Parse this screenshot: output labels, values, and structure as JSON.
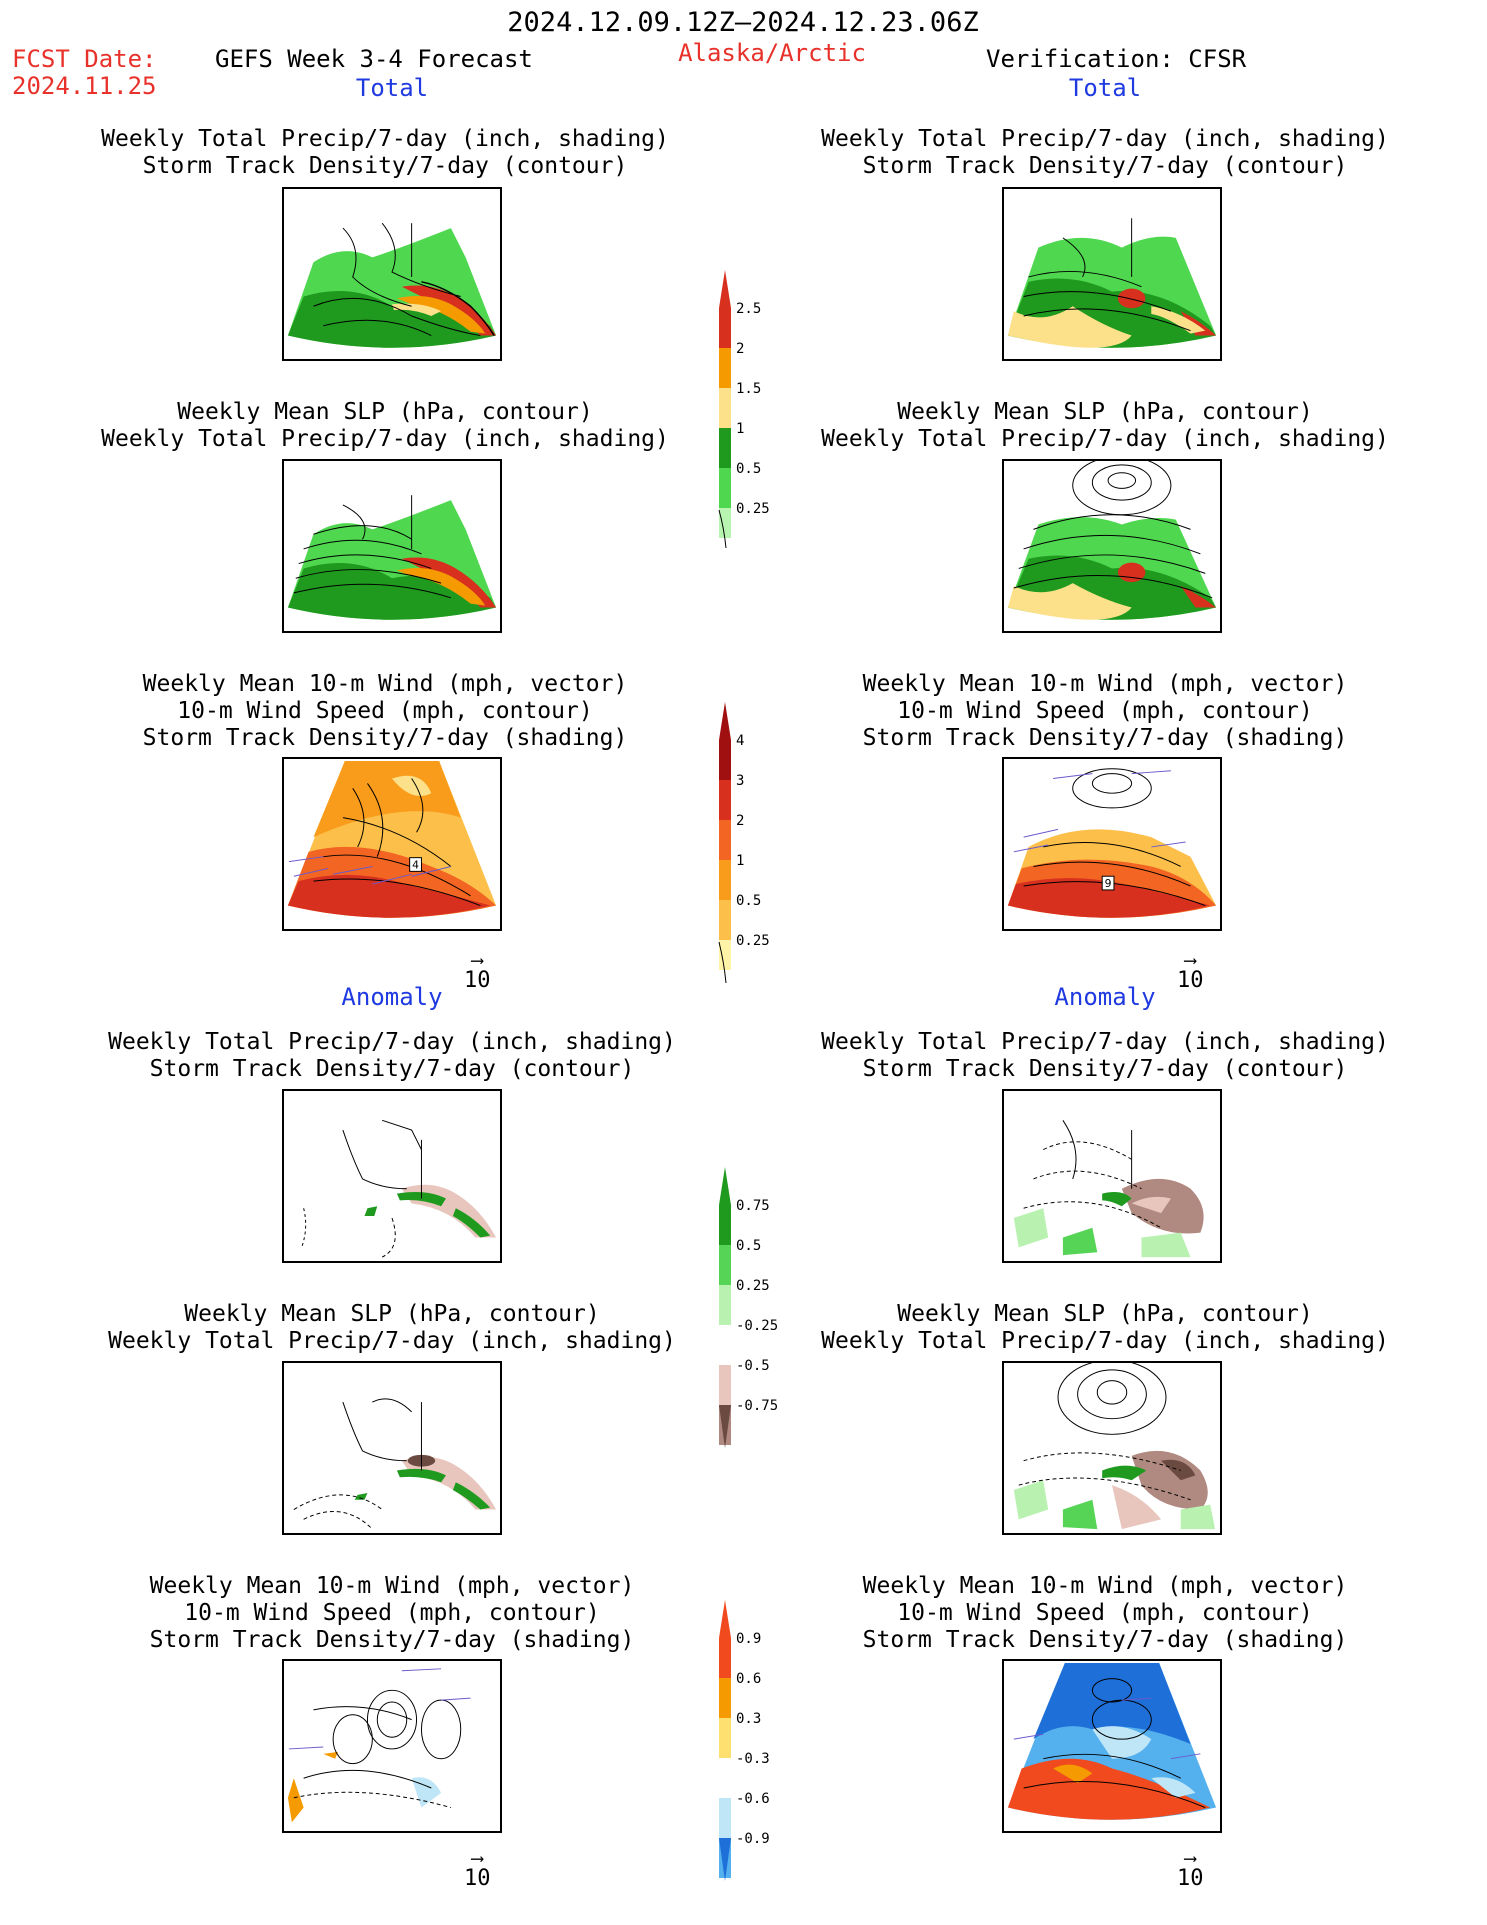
{
  "header": {
    "period": "2024.12.09.12Z–2024.12.23.06Z",
    "fcst_label": "FCST Date:",
    "fcst_date": "2024.11.25",
    "forecast_name": "GEFS Week 3-4 Forecast",
    "region": "Alaska/Arctic",
    "verification": "Verification: CFSR"
  },
  "sections": {
    "total": "Total",
    "anomaly": "Anomaly"
  },
  "titles": {
    "precip_storm": [
      "Weekly Total Precip/7-day (inch, shading)",
      "Storm Track Density/7-day (contour)"
    ],
    "slp_precip": [
      "Weekly Mean SLP (hPa, contour)",
      "Weekly Total Precip/7-day (inch, shading)"
    ],
    "wind_storm": [
      "Weekly Mean 10-m Wind (mph, vector)",
      "10-m Wind Speed (mph, contour)",
      "Storm Track Density/7-day (shading)"
    ]
  },
  "vector_scale": "10",
  "point_labels": {
    "left_total_wind": "4",
    "right_total_wind": "9"
  },
  "colorbars": {
    "precip_total": {
      "labels": [
        "2.5",
        "2",
        "1.5",
        "1",
        "0.5",
        "0.25"
      ],
      "colors": [
        "#d7301f",
        "#f59a00",
        "#fde08a",
        "#1f9a1f",
        "#4fd84f",
        "#b7f5b0"
      ]
    },
    "storm_total": {
      "labels": [
        "4",
        "3",
        "2",
        "1",
        "0.5",
        "0.25"
      ],
      "colors": [
        "#a01010",
        "#d7301f",
        "#f26522",
        "#f99c1c",
        "#fcc04a",
        "#fff3a8"
      ]
    },
    "precip_anom": {
      "labels": [
        "0.75",
        "0.5",
        "0.25",
        "-0.25",
        "-0.5",
        "-0.75"
      ],
      "colors": [
        "#1f9a1f",
        "#55d455",
        "#b9f2b0",
        "#ffffff",
        "#e8c6be",
        "#b08a80",
        "#6b4a42"
      ]
    },
    "storm_anom": {
      "labels": [
        "0.9",
        "0.6",
        "0.3",
        "-0.3",
        "-0.6",
        "-0.9"
      ],
      "colors": [
        "#f04a1e",
        "#f59a00",
        "#fde070",
        "#ffffff",
        "#bfe6f7",
        "#55b0ee",
        "#1f6fd8"
      ]
    }
  }
}
